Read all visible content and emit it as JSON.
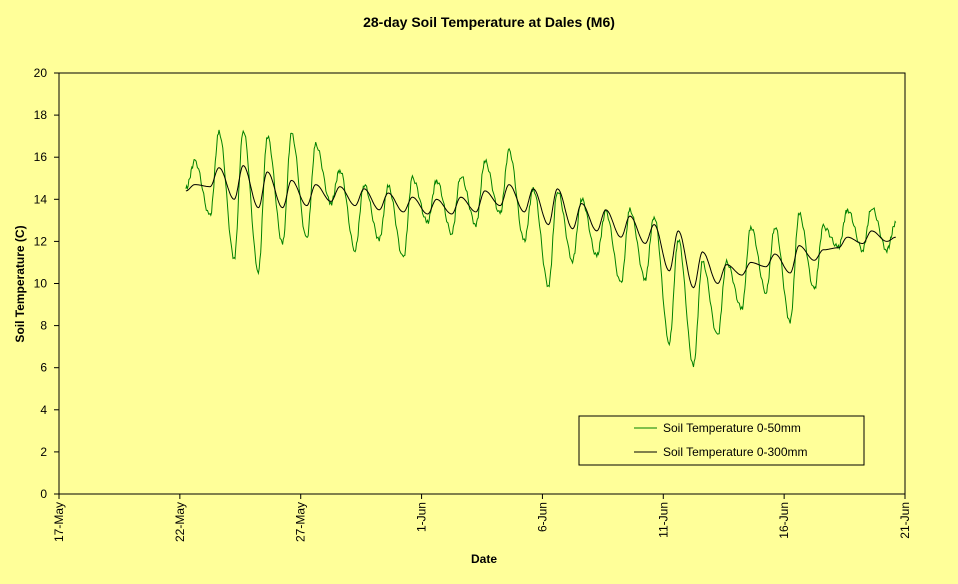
{
  "chart_data": {
    "type": "line",
    "title": "28-day Soil Temperature at Dales (M6)",
    "xlabel": "Date",
    "ylabel": "Soil Temperature (C)",
    "xlim": [
      "17-May",
      "21-Jun"
    ],
    "ylim": [
      0,
      20
    ],
    "x_ticks": [
      "17-May",
      "22-May",
      "27-May",
      "1-Jun",
      "6-Jun",
      "11-Jun",
      "16-Jun",
      "21-Jun"
    ],
    "y_ticks": [
      0,
      2,
      4,
      6,
      8,
      10,
      12,
      14,
      16,
      18,
      20
    ],
    "grid": false,
    "legend_position": "bottom-right",
    "background": "#FFFF99",
    "series": [
      {
        "name": "Soil Temperature 0-50mm",
        "color": "#008000",
        "daily_min_max": [
          {
            "date": "22-May",
            "min": 14.5,
            "max": 15.8
          },
          {
            "date": "23-May",
            "min": 13.2,
            "max": 17.2
          },
          {
            "date": "24-May",
            "min": 11.2,
            "max": 17.3
          },
          {
            "date": "25-May",
            "min": 10.6,
            "max": 17.0
          },
          {
            "date": "26-May",
            "min": 11.9,
            "max": 17.1
          },
          {
            "date": "27-May",
            "min": 12.1,
            "max": 16.6
          },
          {
            "date": "28-May",
            "min": 13.8,
            "max": 15.4
          },
          {
            "date": "29-May",
            "min": 11.6,
            "max": 14.7
          },
          {
            "date": "30-May",
            "min": 12.1,
            "max": 14.6
          },
          {
            "date": "31-May",
            "min": 11.2,
            "max": 15.0
          },
          {
            "date": "1-Jun",
            "min": 12.9,
            "max": 14.9
          },
          {
            "date": "2-Jun",
            "min": 12.4,
            "max": 15.1
          },
          {
            "date": "3-Jun",
            "min": 12.8,
            "max": 15.8
          },
          {
            "date": "4-Jun",
            "min": 13.3,
            "max": 16.3
          },
          {
            "date": "5-Jun",
            "min": 12.0,
            "max": 14.5
          },
          {
            "date": "6-Jun",
            "min": 9.9,
            "max": 14.4
          },
          {
            "date": "7-Jun",
            "min": 11.1,
            "max": 14.0
          },
          {
            "date": "8-Jun",
            "min": 11.3,
            "max": 13.4
          },
          {
            "date": "9-Jun",
            "min": 10.0,
            "max": 13.5
          },
          {
            "date": "10-Jun",
            "min": 10.2,
            "max": 13.2
          },
          {
            "date": "11-Jun",
            "min": 7.2,
            "max": 12.1
          },
          {
            "date": "12-Jun",
            "min": 6.1,
            "max": 11.0
          },
          {
            "date": "13-Jun",
            "min": 7.5,
            "max": 11.0
          },
          {
            "date": "14-Jun",
            "min": 8.8,
            "max": 12.7
          },
          {
            "date": "15-Jun",
            "min": 9.6,
            "max": 12.7
          },
          {
            "date": "16-Jun",
            "min": 8.2,
            "max": 13.3
          },
          {
            "date": "17-Jun",
            "min": 9.7,
            "max": 12.7
          },
          {
            "date": "18-Jun",
            "min": 11.7,
            "max": 13.5
          },
          {
            "date": "19-Jun",
            "min": 11.6,
            "max": 13.6
          },
          {
            "date": "19-Jun",
            "min": 11.6,
            "max": 12.9
          }
        ]
      },
      {
        "name": "Soil Temperature 0-300mm",
        "color": "#000000",
        "daily_min_max": [
          {
            "date": "22-May",
            "min": 14.4,
            "max": 14.7
          },
          {
            "date": "23-May",
            "min": 14.6,
            "max": 15.5
          },
          {
            "date": "24-May",
            "min": 14.0,
            "max": 15.6
          },
          {
            "date": "25-May",
            "min": 13.6,
            "max": 15.3
          },
          {
            "date": "26-May",
            "min": 13.6,
            "max": 14.9
          },
          {
            "date": "27-May",
            "min": 13.7,
            "max": 14.7
          },
          {
            "date": "28-May",
            "min": 13.9,
            "max": 14.6
          },
          {
            "date": "29-May",
            "min": 13.7,
            "max": 14.5
          },
          {
            "date": "30-May",
            "min": 13.5,
            "max": 14.3
          },
          {
            "date": "31-May",
            "min": 13.4,
            "max": 14.1
          },
          {
            "date": "1-Jun",
            "min": 13.3,
            "max": 14.0
          },
          {
            "date": "2-Jun",
            "min": 13.3,
            "max": 14.1
          },
          {
            "date": "3-Jun",
            "min": 13.4,
            "max": 14.4
          },
          {
            "date": "4-Jun",
            "min": 13.7,
            "max": 14.7
          },
          {
            "date": "5-Jun",
            "min": 13.4,
            "max": 14.5
          },
          {
            "date": "6-Jun",
            "min": 12.8,
            "max": 14.5
          },
          {
            "date": "7-Jun",
            "min": 12.6,
            "max": 13.8
          },
          {
            "date": "8-Jun",
            "min": 12.5,
            "max": 13.5
          },
          {
            "date": "9-Jun",
            "min": 12.2,
            "max": 13.2
          },
          {
            "date": "10-Jun",
            "min": 11.9,
            "max": 12.8
          },
          {
            "date": "11-Jun",
            "min": 10.6,
            "max": 12.5
          },
          {
            "date": "12-Jun",
            "min": 9.8,
            "max": 11.5
          },
          {
            "date": "13-Jun",
            "min": 10.0,
            "max": 10.9
          },
          {
            "date": "14-Jun",
            "min": 10.4,
            "max": 11.0
          },
          {
            "date": "15-Jun",
            "min": 10.8,
            "max": 11.4
          },
          {
            "date": "16-Jun",
            "min": 10.5,
            "max": 11.8
          },
          {
            "date": "17-Jun",
            "min": 11.1,
            "max": 11.6
          },
          {
            "date": "18-Jun",
            "min": 11.7,
            "max": 12.2
          },
          {
            "date": "19-Jun",
            "min": 11.9,
            "max": 12.5
          },
          {
            "date": "19-Jun",
            "min": 12.0,
            "max": 12.2
          }
        ]
      }
    ]
  }
}
